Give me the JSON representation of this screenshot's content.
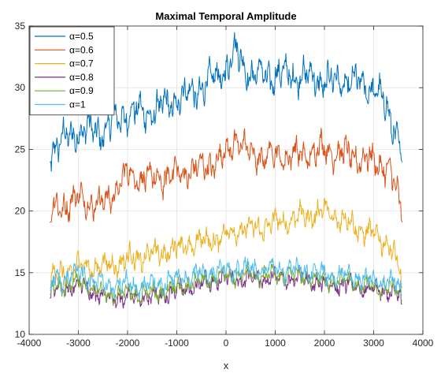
{
  "chart_data": {
    "type": "line",
    "title": "Maximal Temporal Amplitude",
    "xlabel": "x",
    "ylabel": "",
    "xlim": [
      -4000,
      4000
    ],
    "ylim": [
      10,
      35
    ],
    "xticks": [
      -4000,
      -3000,
      -2000,
      -1000,
      0,
      1000,
      2000,
      3000,
      4000
    ],
    "yticks": [
      10,
      15,
      20,
      25,
      30,
      35
    ],
    "grid": true,
    "legend_position": "top-left",
    "x_range_of_series": [
      -3580,
      3580
    ],
    "series": [
      {
        "name": "α=0.5",
        "color": "#0072BD",
        "x": [
          -3580,
          -3000,
          -2500,
          -2000,
          -1500,
          -1000,
          -500,
          0,
          200,
          500,
          1000,
          1500,
          2000,
          2500,
          3000,
          3300,
          3580
        ],
        "values": [
          25,
          26.5,
          26.5,
          28,
          28,
          29,
          30,
          31.5,
          33,
          31,
          31,
          31,
          30.5,
          30.5,
          30,
          28,
          25
        ]
      },
      {
        "name": "α=0.6",
        "color": "#D95319",
        "x": [
          -3580,
          -3000,
          -2500,
          -2000,
          -1500,
          -1000,
          -500,
          0,
          200,
          500,
          1000,
          1500,
          2000,
          2500,
          3000,
          3300,
          3580
        ],
        "values": [
          20,
          21,
          20.5,
          23,
          22.5,
          23,
          23.5,
          24.5,
          26,
          24.5,
          24.5,
          24.5,
          25,
          24.5,
          24,
          23.5,
          20
        ]
      },
      {
        "name": "α=0.7",
        "color": "#EDB120",
        "x": [
          -3580,
          -3000,
          -2500,
          -2000,
          -1500,
          -1000,
          -500,
          0,
          200,
          500,
          1000,
          1500,
          2000,
          2500,
          3000,
          3300,
          3580
        ],
        "values": [
          14.5,
          15.5,
          15.5,
          16,
          16.5,
          17,
          17.5,
          18,
          18.5,
          18.5,
          19,
          19.5,
          20,
          19,
          18,
          17.5,
          14.5
        ]
      },
      {
        "name": "α=0.8",
        "color": "#7E2F8E",
        "x": [
          -3580,
          -3000,
          -2500,
          -2000,
          -1500,
          -1000,
          -500,
          0,
          200,
          500,
          1000,
          1500,
          2000,
          2500,
          3000,
          3300,
          3580
        ],
        "values": [
          13.5,
          14,
          13,
          13,
          13,
          13.5,
          14,
          14.5,
          14.5,
          14.5,
          14.5,
          14.5,
          14,
          14,
          13.5,
          13.5,
          13
        ]
      },
      {
        "name": "α=0.9",
        "color": "#77AC30",
        "x": [
          -3580,
          -3000,
          -2500,
          -2000,
          -1500,
          -1000,
          -500,
          0,
          200,
          500,
          1000,
          1500,
          2000,
          2500,
          3000,
          3300,
          3580
        ],
        "values": [
          13.8,
          14.2,
          13.3,
          13.3,
          13.3,
          13.8,
          14.3,
          14.8,
          14.8,
          14.8,
          14.8,
          14.8,
          14.3,
          14.3,
          13.8,
          13.8,
          13.3
        ]
      },
      {
        "name": "α=1",
        "color": "#4DBEEE",
        "x": [
          -3580,
          -3000,
          -2500,
          -2000,
          -1500,
          -1000,
          -500,
          0,
          200,
          500,
          1000,
          1500,
          2000,
          2500,
          3000,
          3300,
          3580
        ],
        "values": [
          14.2,
          15,
          14,
          14,
          14,
          14.5,
          15,
          15.3,
          15.3,
          15.3,
          15.3,
          15.3,
          14.8,
          14.8,
          14.3,
          14.3,
          13.8
        ]
      }
    ]
  }
}
